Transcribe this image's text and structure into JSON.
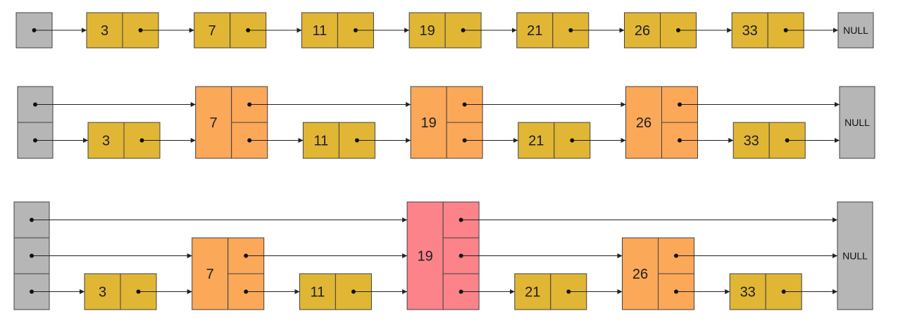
{
  "null_label": "NULL",
  "colors": {
    "head": "#b6b6b6",
    "level1": "#e1b634",
    "level2": "#fba859",
    "level3": "#fb8389",
    "stroke": "#404040"
  },
  "lists": [
    {
      "levels": 1,
      "nodes": [
        {
          "value": "3",
          "level": 1
        },
        {
          "value": "7",
          "level": 1
        },
        {
          "value": "11",
          "level": 1
        },
        {
          "value": "19",
          "level": 1
        },
        {
          "value": "21",
          "level": 1
        },
        {
          "value": "26",
          "level": 1
        },
        {
          "value": "33",
          "level": 1
        }
      ]
    },
    {
      "levels": 2,
      "nodes": [
        {
          "value": "3",
          "level": 1
        },
        {
          "value": "7",
          "level": 2
        },
        {
          "value": "11",
          "level": 1
        },
        {
          "value": "19",
          "level": 2
        },
        {
          "value": "21",
          "level": 1
        },
        {
          "value": "26",
          "level": 2
        },
        {
          "value": "33",
          "level": 1
        }
      ]
    },
    {
      "levels": 3,
      "nodes": [
        {
          "value": "3",
          "level": 1
        },
        {
          "value": "7",
          "level": 2
        },
        {
          "value": "11",
          "level": 1
        },
        {
          "value": "19",
          "level": 3
        },
        {
          "value": "21",
          "level": 1
        },
        {
          "value": "26",
          "level": 2
        },
        {
          "value": "33",
          "level": 1
        }
      ]
    }
  ]
}
